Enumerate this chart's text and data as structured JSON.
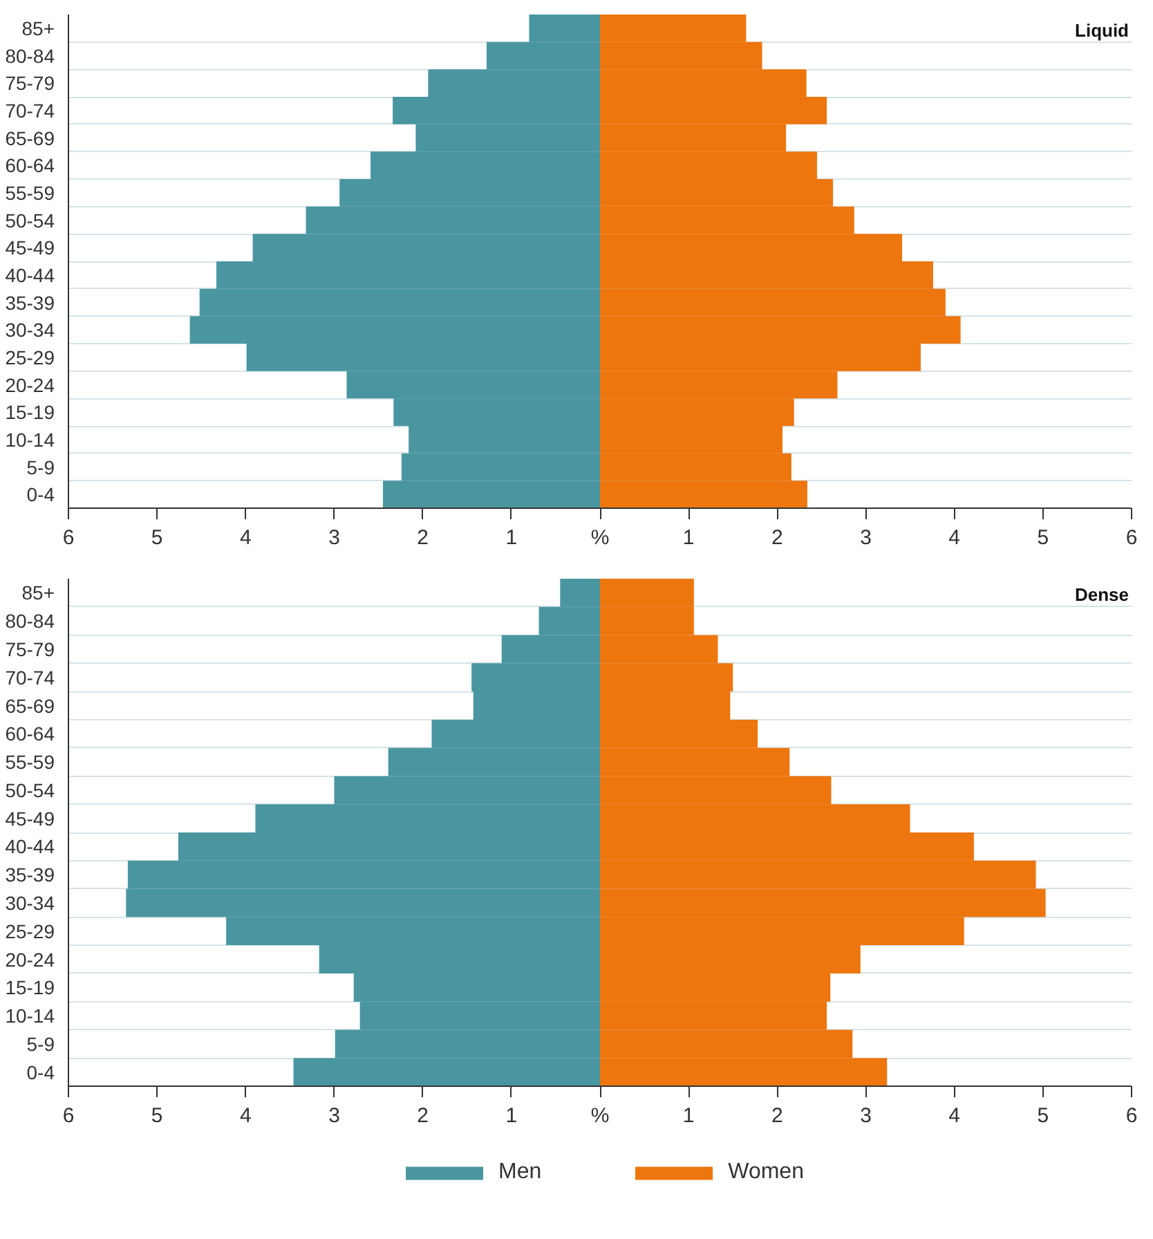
{
  "chart_data": [
    {
      "type": "bar",
      "orientation": "horizontal",
      "stacked": true,
      "title": "Liquid",
      "categories": [
        "85+",
        "80-84",
        "75-79",
        "70-74",
        "65-69",
        "60-64",
        "55-59",
        "50-54",
        "45-49",
        "40-44",
        "35-39",
        "30-34",
        "25-29",
        "20-24",
        "15-19",
        "10-14",
        "5-9",
        "0-4"
      ],
      "series": [
        {
          "color": "#4a96a0",
          "values": [
            -0.8,
            -1.28,
            -1.94,
            -2.34,
            -2.08,
            -2.59,
            -2.94,
            -3.32,
            -3.92,
            -4.33,
            -4.52,
            -4.63,
            -3.99,
            -2.86,
            -2.33,
            -2.16,
            -2.24,
            -2.45
          ]
        },
        {
          "color": "#ee760e",
          "values": [
            1.65,
            1.83,
            2.33,
            2.56,
            2.1,
            2.45,
            2.63,
            2.87,
            3.41,
            3.76,
            3.9,
            4.07,
            3.62,
            2.68,
            2.19,
            2.06,
            2.16,
            2.34
          ]
        }
      ],
      "xlim": [
        -6,
        6
      ],
      "xticks": [
        {
          "value": -6,
          "label": "6"
        },
        {
          "value": -5,
          "label": "5"
        },
        {
          "value": -4,
          "label": "4"
        },
        {
          "value": -3,
          "label": "3"
        },
        {
          "value": -2,
          "label": "2"
        },
        {
          "value": -1,
          "label": "1"
        },
        {
          "value": 0,
          "label": "%"
        },
        1,
        2,
        3,
        4,
        5,
        6
      ],
      "grid": "y",
      "legend": false
    },
    {
      "type": "bar",
      "orientation": "horizontal",
      "stacked": true,
      "title": "Dense",
      "categories": [
        "85+",
        "80-84",
        "75-79",
        "70-74",
        "65-69",
        "60-64",
        "55-59",
        "50-54",
        "45-49",
        "40-44",
        "35-39",
        "30-34",
        "25-29",
        "20-24",
        "15-19",
        "10-14",
        "5-9",
        "0-4"
      ],
      "series": [
        {
          "name": "Men",
          "color": "#4a96a0",
          "values": [
            -0.45,
            -0.69,
            -1.11,
            -1.45,
            -1.43,
            -1.9,
            -2.39,
            -3.0,
            -3.89,
            -4.76,
            -5.33,
            -5.35,
            -4.22,
            -3.17,
            -2.78,
            -2.71,
            -2.99,
            -3.46
          ]
        },
        {
          "name": "Women",
          "color": "#ee760e",
          "values": [
            1.06,
            1.06,
            1.33,
            1.5,
            1.47,
            1.78,
            2.14,
            2.61,
            3.5,
            4.22,
            4.92,
            5.03,
            4.11,
            2.94,
            2.6,
            2.56,
            2.85,
            3.24
          ]
        }
      ],
      "xlim": [
        -6,
        6
      ],
      "xticks": [
        {
          "value": -6,
          "label": "6"
        },
        {
          "value": -5,
          "label": "5"
        },
        {
          "value": -4,
          "label": "4"
        },
        {
          "value": -3,
          "label": "3"
        },
        {
          "value": -2,
          "label": "2"
        },
        {
          "value": -1,
          "label": "1"
        },
        {
          "value": 0,
          "label": "%"
        },
        1,
        2,
        3,
        4,
        5,
        6
      ],
      "grid": "y",
      "legend": "bottom"
    }
  ]
}
